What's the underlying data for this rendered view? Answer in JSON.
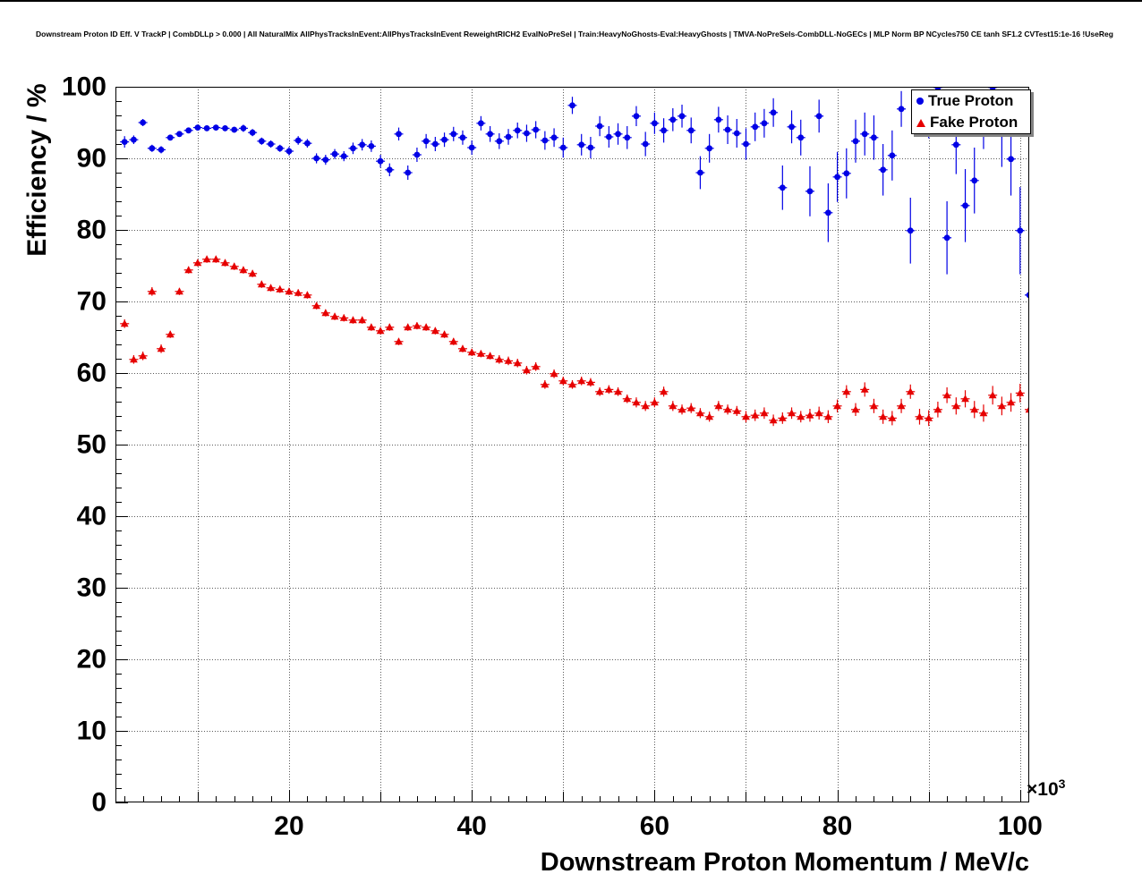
{
  "page": {
    "title": "Downstream Proton ID Eff. V TrackP | CombDLLp > 0.000 | All NaturalMix AllPhysTracksInEvent:AllPhysTracksInEvent ReweightRICH2 EvalNoPreSel | Train:HeavyNoGhosts-Eval:HeavyGhosts | TMVA-NoPreSels-CombDLL-NoGECs | MLP Norm BP NCycles750 CE tanh SF1.2 CVTest15:1e-16 !UseReg"
  },
  "chart_data": {
    "type": "scatter",
    "title": "Downstream Proton ID Eff. V TrackP | CombDLLp > 0.000 | All NaturalMix AllPhysTracksInEvent:AllPhysTracksInEvent ReweightRICH2 EvalNoPreSel | Train:HeavyNoGhosts-Eval:HeavyGhosts | TMVA-NoPreSels-CombDLL-NoGECs | MLP Norm BP NCycles750 CE tanh SF1.2 CVTest15:1e-16 !UseReg",
    "xlabel": "Downstream Proton Momentum / MeV/c",
    "ylabel": "Efficiency / %",
    "x_unit_note": "x values in units of 10^3 MeV/c",
    "x_exponent": {
      "base": "×10",
      "sup": "3"
    },
    "xlim": [
      1,
      101
    ],
    "ylim": [
      0,
      100
    ],
    "grid": true,
    "x_ticks": [
      20,
      40,
      60,
      80,
      100
    ],
    "x_tick_labels": [
      "20",
      "40",
      "60",
      "80",
      "100"
    ],
    "y_ticks": [
      0,
      10,
      20,
      30,
      40,
      50,
      60,
      70,
      80,
      90,
      100
    ],
    "y_tick_labels": [
      "0",
      "10",
      "20",
      "30",
      "40",
      "50",
      "60",
      "70",
      "80",
      "90",
      "100"
    ],
    "legend": {
      "position": "top-right",
      "entries": [
        {
          "label": "True Proton",
          "marker": "circle",
          "color": "#0000e6"
        },
        {
          "label": "Fake Proton",
          "marker": "triangle",
          "color": "#e60000"
        }
      ]
    },
    "series": [
      {
        "name": "True Proton",
        "marker": "circle",
        "color": "#0000e6",
        "points": [
          [
            2,
            92.3,
            0.8
          ],
          [
            3,
            92.6,
            0.6
          ],
          [
            4,
            95.0,
            0.5
          ],
          [
            5,
            91.4,
            0.5
          ],
          [
            6,
            91.2,
            0.5
          ],
          [
            7,
            92.9,
            0.4
          ],
          [
            8,
            93.4,
            0.4
          ],
          [
            9,
            93.9,
            0.4
          ],
          [
            10,
            94.3,
            0.4
          ],
          [
            11,
            94.2,
            0.4
          ],
          [
            12,
            94.3,
            0.4
          ],
          [
            13,
            94.2,
            0.4
          ],
          [
            14,
            94.0,
            0.4
          ],
          [
            15,
            94.2,
            0.5
          ],
          [
            16,
            93.6,
            0.5
          ],
          [
            17,
            92.4,
            0.5
          ],
          [
            18,
            92.0,
            0.5
          ],
          [
            19,
            91.4,
            0.5
          ],
          [
            20,
            91.0,
            0.6
          ],
          [
            21,
            92.5,
            0.6
          ],
          [
            22,
            92.1,
            0.6
          ],
          [
            23,
            90.0,
            0.7
          ],
          [
            24,
            89.8,
            0.7
          ],
          [
            25,
            90.6,
            0.7
          ],
          [
            26,
            90.3,
            0.7
          ],
          [
            27,
            91.4,
            0.8
          ],
          [
            28,
            91.9,
            0.8
          ],
          [
            29,
            91.7,
            0.8
          ],
          [
            30,
            89.6,
            0.9
          ],
          [
            31,
            88.4,
            0.9
          ],
          [
            32,
            93.4,
            0.9
          ],
          [
            33,
            88.0,
            1.0
          ],
          [
            34,
            90.5,
            1.0
          ],
          [
            35,
            92.4,
            1.0
          ],
          [
            36,
            92.0,
            1.0
          ],
          [
            37,
            92.6,
            1.0
          ],
          [
            38,
            93.4,
            1.0
          ],
          [
            39,
            92.9,
            1.0
          ],
          [
            40,
            91.5,
            1.0
          ],
          [
            41,
            94.9,
            1.0
          ],
          [
            42,
            93.4,
            1.1
          ],
          [
            43,
            92.4,
            1.1
          ],
          [
            44,
            93.0,
            1.1
          ],
          [
            45,
            93.9,
            1.1
          ],
          [
            46,
            93.5,
            1.2
          ],
          [
            47,
            94.0,
            1.2
          ],
          [
            48,
            92.5,
            1.3
          ],
          [
            49,
            92.9,
            1.3
          ],
          [
            50,
            91.5,
            1.4
          ],
          [
            51,
            97.4,
            1.2
          ],
          [
            52,
            91.9,
            1.5
          ],
          [
            53,
            91.5,
            1.5
          ],
          [
            54,
            94.5,
            1.4
          ],
          [
            55,
            93.0,
            1.5
          ],
          [
            56,
            93.4,
            1.5
          ],
          [
            57,
            92.9,
            1.6
          ],
          [
            58,
            95.9,
            1.4
          ],
          [
            59,
            92.0,
            1.7
          ],
          [
            60,
            94.9,
            1.5
          ],
          [
            61,
            93.9,
            1.7
          ],
          [
            62,
            95.4,
            1.6
          ],
          [
            63,
            95.9,
            1.6
          ],
          [
            64,
            93.9,
            1.8
          ],
          [
            65,
            88.0,
            2.3
          ],
          [
            66,
            91.4,
            2.0
          ],
          [
            67,
            95.4,
            1.8
          ],
          [
            68,
            94.0,
            2.0
          ],
          [
            69,
            93.5,
            2.0
          ],
          [
            70,
            92.0,
            2.2
          ],
          [
            71,
            94.4,
            2.0
          ],
          [
            72,
            94.9,
            2.0
          ],
          [
            73,
            96.4,
            2.0
          ],
          [
            74,
            85.9,
            3.1
          ],
          [
            75,
            94.4,
            2.3
          ],
          [
            76,
            92.9,
            2.5
          ],
          [
            77,
            85.4,
            3.5
          ],
          [
            78,
            95.9,
            2.3
          ],
          [
            79,
            82.4,
            4.1
          ],
          [
            80,
            87.4,
            3.5
          ],
          [
            81,
            87.9,
            3.5
          ],
          [
            82,
            92.4,
            3.0
          ],
          [
            83,
            93.4,
            3.0
          ],
          [
            84,
            92.9,
            3.1
          ],
          [
            85,
            88.4,
            3.6
          ],
          [
            86,
            90.4,
            3.5
          ],
          [
            87,
            96.9,
            2.5
          ],
          [
            88,
            79.9,
            4.6
          ],
          [
            89,
            96.4,
            3.0
          ],
          [
            90,
            95.9,
            3.1
          ],
          [
            91,
            99.9,
            2.6
          ],
          [
            92,
            78.9,
            5.1
          ],
          [
            93,
            91.9,
            4.1
          ],
          [
            94,
            83.4,
            5.1
          ],
          [
            95,
            86.9,
            4.6
          ],
          [
            96,
            95.4,
            4.1
          ],
          [
            97,
            99.9,
            3.6
          ],
          [
            98,
            93.4,
            4.6
          ],
          [
            99,
            89.9,
            5.1
          ],
          [
            100,
            79.9,
            6.1
          ],
          [
            101,
            70.9,
            8.1
          ]
        ]
      },
      {
        "name": "Fake Proton",
        "marker": "triangle",
        "color": "#e60000",
        "points": [
          [
            2,
            66.9,
            0.6
          ],
          [
            3,
            61.9,
            0.6
          ],
          [
            4,
            62.4,
            0.6
          ],
          [
            5,
            71.4,
            0.6
          ],
          [
            6,
            63.4,
            0.6
          ],
          [
            7,
            65.4,
            0.5
          ],
          [
            8,
            71.4,
            0.5
          ],
          [
            9,
            74.4,
            0.5
          ],
          [
            10,
            75.4,
            0.5
          ],
          [
            11,
            75.9,
            0.5
          ],
          [
            12,
            75.9,
            0.5
          ],
          [
            13,
            75.4,
            0.5
          ],
          [
            14,
            74.9,
            0.5
          ],
          [
            15,
            74.4,
            0.5
          ],
          [
            16,
            73.9,
            0.5
          ],
          [
            17,
            72.4,
            0.5
          ],
          [
            18,
            71.9,
            0.5
          ],
          [
            19,
            71.7,
            0.5
          ],
          [
            20,
            71.4,
            0.5
          ],
          [
            21,
            71.2,
            0.5
          ],
          [
            22,
            70.9,
            0.5
          ],
          [
            23,
            69.4,
            0.5
          ],
          [
            24,
            68.4,
            0.5
          ],
          [
            25,
            67.9,
            0.5
          ],
          [
            26,
            67.7,
            0.5
          ],
          [
            27,
            67.4,
            0.5
          ],
          [
            28,
            67.4,
            0.5
          ],
          [
            29,
            66.4,
            0.5
          ],
          [
            30,
            65.9,
            0.5
          ],
          [
            31,
            66.4,
            0.5
          ],
          [
            32,
            64.4,
            0.5
          ],
          [
            33,
            66.4,
            0.5
          ],
          [
            34,
            66.6,
            0.5
          ],
          [
            35,
            66.4,
            0.5
          ],
          [
            36,
            65.9,
            0.5
          ],
          [
            37,
            65.4,
            0.5
          ],
          [
            38,
            64.4,
            0.5
          ],
          [
            39,
            63.4,
            0.5
          ],
          [
            40,
            62.9,
            0.5
          ],
          [
            41,
            62.7,
            0.5
          ],
          [
            42,
            62.4,
            0.5
          ],
          [
            43,
            61.9,
            0.6
          ],
          [
            44,
            61.7,
            0.6
          ],
          [
            45,
            61.4,
            0.6
          ],
          [
            46,
            60.4,
            0.6
          ],
          [
            47,
            60.9,
            0.6
          ],
          [
            48,
            58.4,
            0.6
          ],
          [
            49,
            59.9,
            0.6
          ],
          [
            50,
            58.9,
            0.6
          ],
          [
            51,
            58.4,
            0.6
          ],
          [
            52,
            58.9,
            0.6
          ],
          [
            53,
            58.7,
            0.6
          ],
          [
            54,
            57.4,
            0.6
          ],
          [
            55,
            57.7,
            0.6
          ],
          [
            56,
            57.4,
            0.6
          ],
          [
            57,
            56.4,
            0.6
          ],
          [
            58,
            55.9,
            0.7
          ],
          [
            59,
            55.4,
            0.7
          ],
          [
            60,
            55.9,
            0.7
          ],
          [
            61,
            57.4,
            0.7
          ],
          [
            62,
            55.4,
            0.7
          ],
          [
            63,
            54.9,
            0.7
          ],
          [
            64,
            55.1,
            0.7
          ],
          [
            65,
            54.4,
            0.7
          ],
          [
            66,
            53.9,
            0.7
          ],
          [
            67,
            55.4,
            0.7
          ],
          [
            68,
            54.9,
            0.7
          ],
          [
            69,
            54.7,
            0.7
          ],
          [
            70,
            53.9,
            0.8
          ],
          [
            71,
            54.1,
            0.8
          ],
          [
            72,
            54.4,
            0.8
          ],
          [
            73,
            53.4,
            0.8
          ],
          [
            74,
            53.7,
            0.8
          ],
          [
            75,
            54.4,
            0.8
          ],
          [
            76,
            53.9,
            0.8
          ],
          [
            77,
            54.1,
            0.9
          ],
          [
            78,
            54.4,
            0.9
          ],
          [
            79,
            53.9,
            0.9
          ],
          [
            80,
            55.4,
            0.9
          ],
          [
            81,
            57.4,
            0.9
          ],
          [
            82,
            54.9,
            0.9
          ],
          [
            83,
            57.7,
            1.0
          ],
          [
            84,
            55.4,
            1.0
          ],
          [
            85,
            53.9,
            1.0
          ],
          [
            86,
            53.7,
            1.0
          ],
          [
            87,
            55.4,
            1.0
          ],
          [
            88,
            57.4,
            1.0
          ],
          [
            89,
            53.9,
            1.1
          ],
          [
            90,
            53.7,
            1.1
          ],
          [
            91,
            54.9,
            1.1
          ],
          [
            92,
            56.9,
            1.1
          ],
          [
            93,
            55.4,
            1.2
          ],
          [
            94,
            56.4,
            1.2
          ],
          [
            95,
            54.9,
            1.2
          ],
          [
            96,
            54.4,
            1.2
          ],
          [
            97,
            56.9,
            1.3
          ],
          [
            98,
            55.4,
            1.3
          ],
          [
            99,
            55.9,
            1.3
          ],
          [
            100,
            57.2,
            1.3
          ],
          [
            101,
            54.9,
            1.4
          ]
        ]
      }
    ]
  }
}
